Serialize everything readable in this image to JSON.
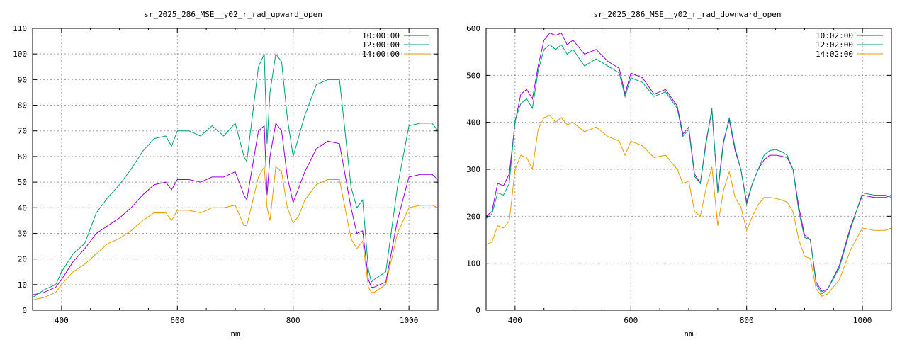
{
  "chart_data": [
    {
      "type": "line",
      "title": "sr_2025_286_MSE__y02_r_rad_upward_open",
      "xlabel": "nm",
      "ylabel": "",
      "xlim": [
        350,
        1050
      ],
      "ylim": [
        0,
        110
      ],
      "grid": true,
      "legend_position": "top-right",
      "x_ticks": [
        "400",
        "600",
        "800",
        "1000"
      ],
      "y_ticks": [
        "0",
        "10",
        "20",
        "30",
        "40",
        "50",
        "60",
        "70",
        "80",
        "90",
        "100",
        "110"
      ],
      "x": [
        350,
        370,
        390,
        400,
        420,
        440,
        460,
        480,
        500,
        520,
        540,
        560,
        580,
        590,
        600,
        620,
        640,
        660,
        680,
        700,
        715,
        720,
        740,
        750,
        755,
        760,
        770,
        780,
        790,
        800,
        810,
        820,
        840,
        860,
        880,
        900,
        910,
        920,
        930,
        935,
        940,
        960,
        980,
        1000,
        1020,
        1040,
        1050
      ],
      "series": [
        {
          "name": "10:00:00",
          "color": "#9400d3",
          "values": [
            6,
            7,
            9,
            12,
            19,
            24,
            30,
            33,
            36,
            40,
            45,
            49,
            50,
            47,
            51,
            51,
            50,
            52,
            52,
            54,
            45,
            43,
            70,
            72,
            45,
            60,
            73,
            70,
            52,
            42,
            48,
            54,
            63,
            66,
            65,
            40,
            30,
            31,
            12,
            9,
            9,
            11,
            35,
            52,
            53,
            53,
            51
          ]
        },
        {
          "name": "12:00:00",
          "color": "#009e73",
          "values": [
            5,
            8,
            10,
            15,
            22,
            26,
            38,
            44,
            49,
            55,
            62,
            67,
            68,
            64,
            70,
            70,
            68,
            72,
            68,
            73,
            60,
            58,
            95,
            100,
            65,
            85,
            100,
            97,
            75,
            60,
            68,
            76,
            88,
            90,
            90,
            48,
            40,
            43,
            16,
            11,
            12,
            15,
            48,
            72,
            73,
            73,
            70
          ]
        },
        {
          "name": "14:00:00",
          "color": "#e69f00",
          "values": [
            4,
            5,
            7,
            10,
            15,
            18,
            22,
            26,
            28,
            31,
            35,
            38,
            38,
            35,
            39,
            39,
            38,
            40,
            40,
            41,
            33,
            33,
            52,
            56,
            40,
            35,
            56,
            54,
            40,
            34,
            37,
            43,
            49,
            51,
            51,
            28,
            24,
            27,
            9,
            7,
            7,
            10,
            30,
            40,
            41,
            41,
            40
          ]
        }
      ]
    },
    {
      "type": "line",
      "title": "sr_2025_286_MSE__y02_r_rad_downward_open",
      "xlabel": "nm",
      "ylabel": "",
      "xlim": [
        350,
        1050
      ],
      "ylim": [
        0,
        600
      ],
      "grid": true,
      "legend_position": "top-right",
      "x_ticks": [
        "400",
        "600",
        "800",
        "1000"
      ],
      "y_ticks": [
        "0",
        "100",
        "200",
        "300",
        "400",
        "500",
        "600"
      ],
      "x": [
        350,
        360,
        370,
        380,
        390,
        400,
        410,
        420,
        430,
        440,
        450,
        460,
        470,
        480,
        490,
        500,
        520,
        540,
        560,
        580,
        590,
        600,
        620,
        640,
        660,
        680,
        690,
        700,
        710,
        720,
        730,
        740,
        750,
        760,
        770,
        780,
        790,
        800,
        810,
        820,
        830,
        840,
        850,
        860,
        870,
        880,
        890,
        900,
        910,
        920,
        930,
        940,
        960,
        980,
        1000,
        1020,
        1040,
        1050
      ],
      "series": [
        {
          "name": "10:02:00",
          "color": "#9400d3",
          "values": [
            200,
            210,
            270,
            265,
            290,
            400,
            460,
            470,
            450,
            520,
            575,
            590,
            585,
            590,
            565,
            575,
            545,
            555,
            530,
            515,
            460,
            505,
            495,
            460,
            470,
            435,
            375,
            390,
            290,
            270,
            360,
            425,
            255,
            360,
            405,
            340,
            300,
            230,
            270,
            300,
            320,
            330,
            330,
            328,
            325,
            300,
            220,
            160,
            150,
            60,
            40,
            45,
            95,
            180,
            245,
            240,
            240,
            245
          ]
        },
        {
          "name": "12:02:00",
          "color": "#009e73",
          "values": [
            195,
            205,
            250,
            245,
            270,
            405,
            440,
            450,
            430,
            510,
            555,
            565,
            555,
            565,
            545,
            555,
            520,
            535,
            520,
            505,
            455,
            495,
            485,
            455,
            465,
            430,
            370,
            385,
            285,
            270,
            355,
            430,
            250,
            355,
            410,
            345,
            300,
            225,
            270,
            300,
            330,
            340,
            342,
            338,
            330,
            300,
            210,
            155,
            150,
            55,
            35,
            45,
            90,
            175,
            250,
            245,
            245,
            240
          ]
        },
        {
          "name": "14:02:00",
          "color": "#e69f00",
          "values": [
            140,
            145,
            180,
            175,
            190,
            300,
            330,
            325,
            300,
            385,
            410,
            415,
            400,
            410,
            395,
            400,
            380,
            390,
            370,
            360,
            330,
            360,
            350,
            325,
            330,
            300,
            270,
            275,
            210,
            200,
            260,
            305,
            180,
            255,
            295,
            240,
            220,
            170,
            200,
            225,
            240,
            240,
            238,
            235,
            230,
            210,
            150,
            115,
            110,
            45,
            30,
            35,
            65,
            130,
            175,
            170,
            170,
            175
          ]
        }
      ]
    }
  ]
}
